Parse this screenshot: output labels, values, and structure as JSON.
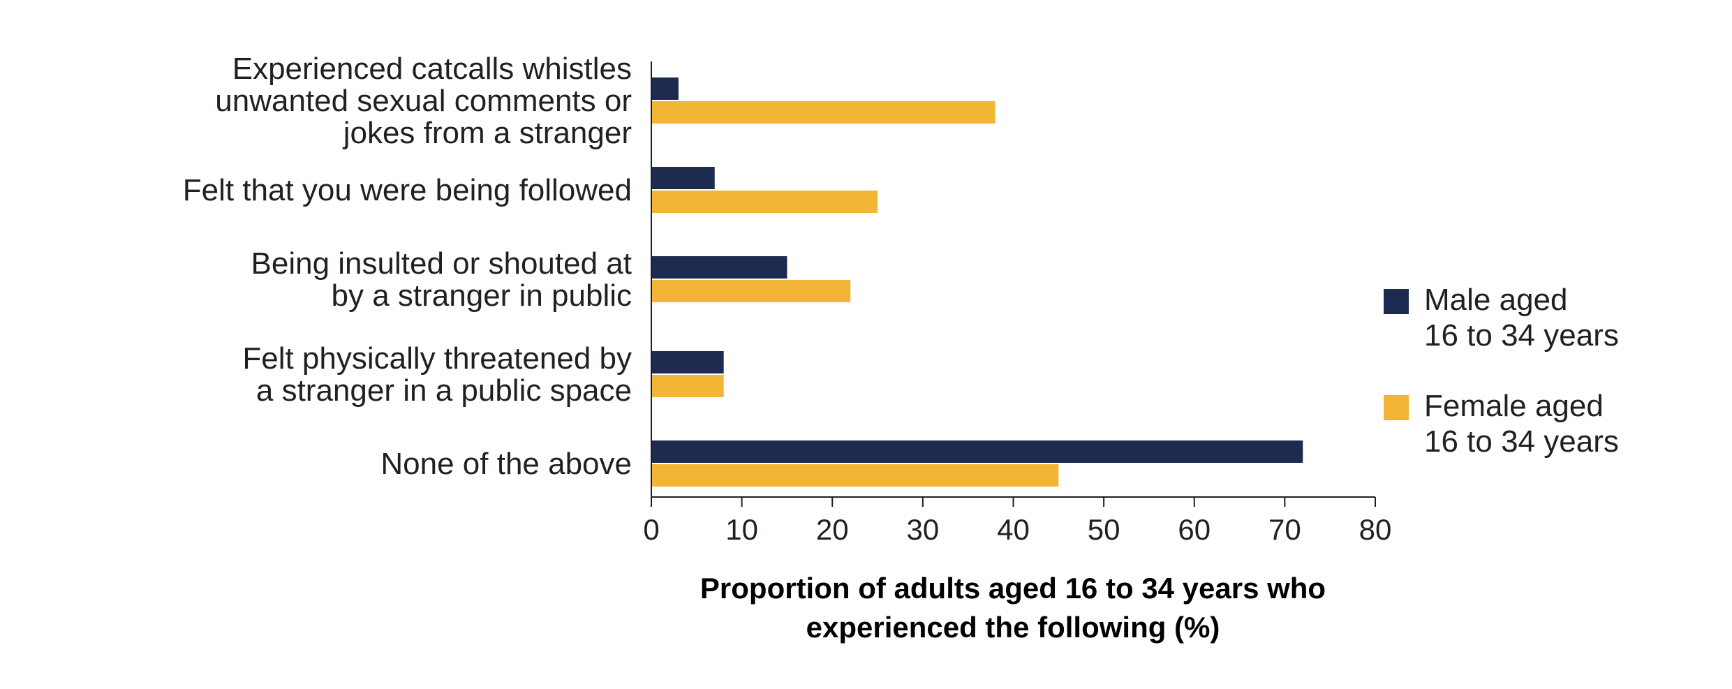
{
  "chart_data": {
    "type": "bar",
    "orientation": "horizontal",
    "categories": [
      [
        "Experienced catcalls whistles",
        "unwanted sexual comments or",
        "jokes from a stranger"
      ],
      [
        "Felt that you were being followed"
      ],
      [
        "Being insulted or shouted at",
        "by a stranger in public"
      ],
      [
        "Felt physically threatened by",
        "a stranger in a public space"
      ],
      [
        "None of the above"
      ]
    ],
    "series": [
      {
        "name": [
          "Male aged",
          "16 to 34 years"
        ],
        "color": "#1d2b51",
        "values": [
          3,
          7,
          15,
          8,
          72
        ]
      },
      {
        "name": [
          "Female aged",
          "16 to 34 years"
        ],
        "color": "#f2b535",
        "values": [
          38,
          25,
          22,
          8,
          45
        ]
      }
    ],
    "xlim": [
      0,
      80
    ],
    "xticks": [
      "0",
      "10",
      "20",
      "30",
      "40",
      "50",
      "60",
      "70",
      "80"
    ],
    "xlabel": [
      "Proportion of adults aged 16 to 34 years who",
      "experienced the following (%)"
    ],
    "grid": false,
    "legend_position": "right"
  }
}
